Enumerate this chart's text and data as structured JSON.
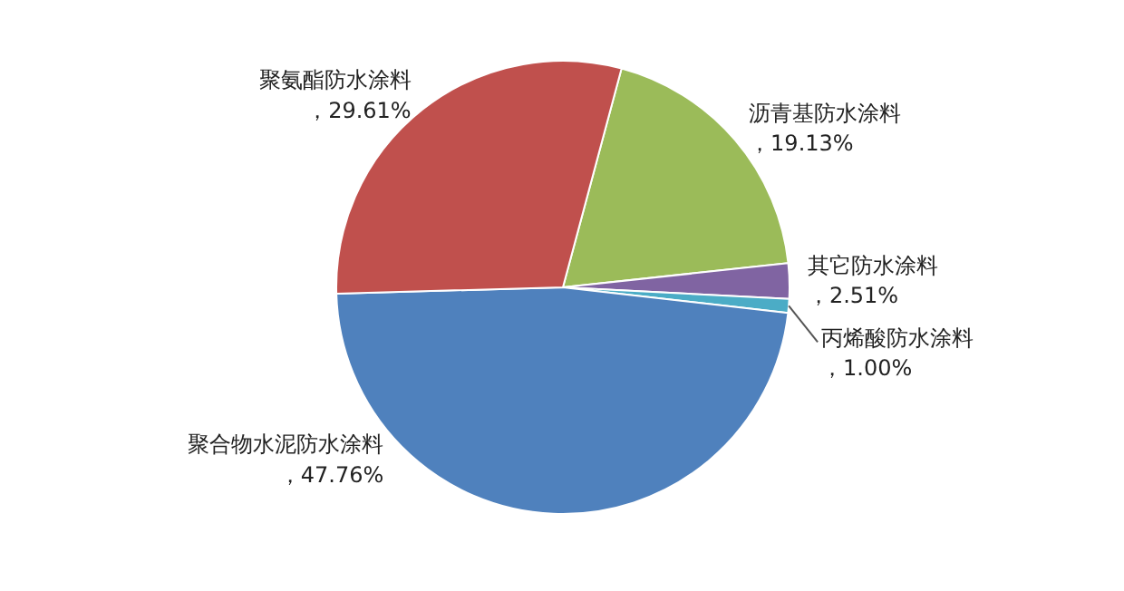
{
  "chart_data": {
    "type": "pie",
    "categories": [
      "沥青基防水涂料",
      "其它防水涂料",
      "丙烯酸防水涂料",
      "聚合物水泥防水涂料",
      "聚氨酯防水涂料"
    ],
    "values": [
      19.13,
      2.51,
      1.0,
      47.76,
      29.61
    ],
    "colors": [
      "#9bbb59",
      "#8064a2",
      "#4bacc6",
      "#4f81bd",
      "#c0504d"
    ],
    "value_labels": [
      "，19.13%",
      "，2.51%",
      "，1.00%",
      "，47.76%",
      "，29.61%"
    ]
  }
}
